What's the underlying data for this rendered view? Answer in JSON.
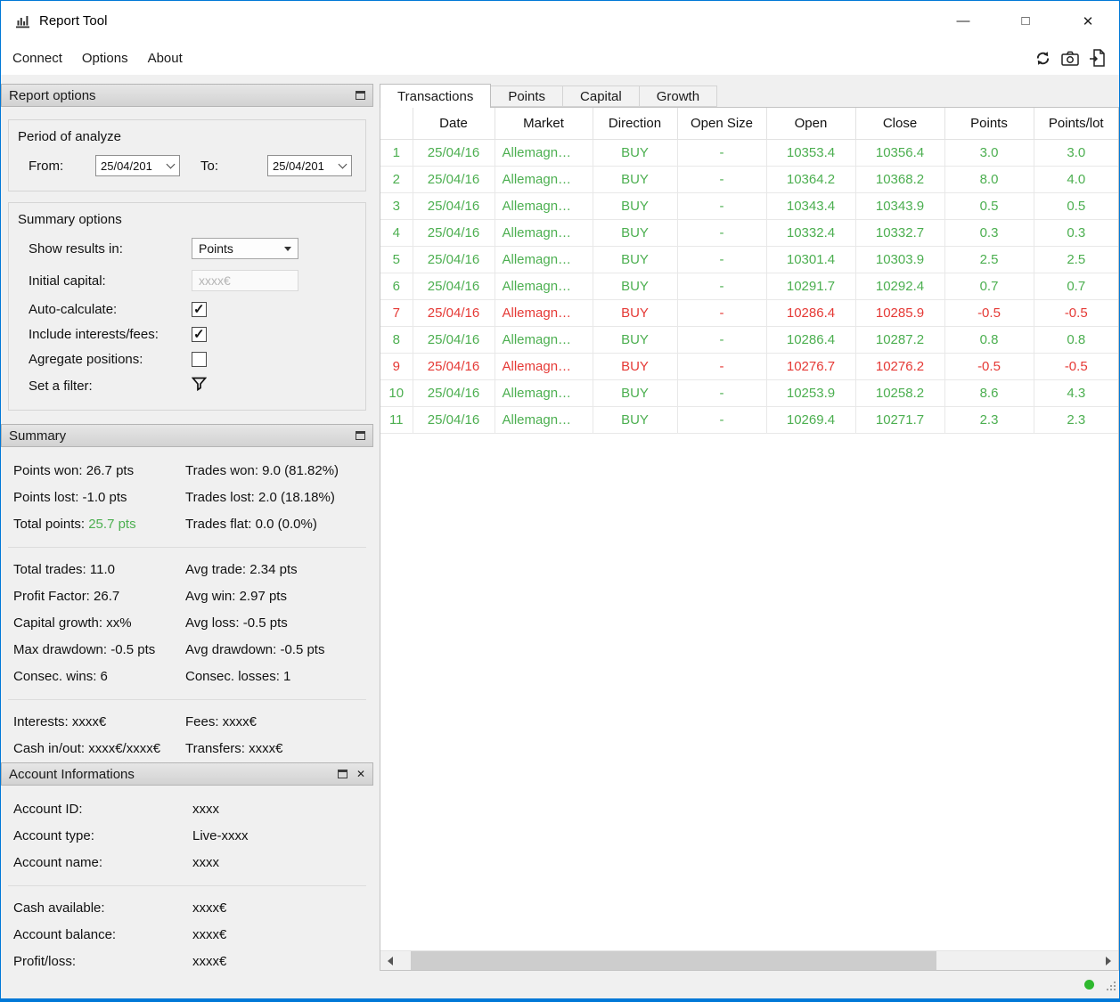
{
  "colors": {
    "green": "#4caf50",
    "red": "#e53935",
    "accent_border": "#0078d7",
    "status_dot": "#2eb82e"
  },
  "window": {
    "title": "Report Tool",
    "controls": {
      "minimize": "—",
      "maximize": "□",
      "close": "✕"
    }
  },
  "menu": {
    "items": [
      "Connect",
      "Options",
      "About"
    ]
  },
  "tabs": {
    "items": [
      "Transactions",
      "Points",
      "Capital",
      "Growth"
    ],
    "active": "Transactions"
  },
  "report_options": {
    "title": "Report options",
    "period": {
      "title": "Period of analyze",
      "from_label": "From:",
      "from_value": "25/04/201",
      "to_label": "To:",
      "to_value": "25/04/201"
    },
    "summary_options": {
      "title": "Summary options",
      "show_results_label": "Show results in:",
      "show_results_value": "Points",
      "initial_capital_label": "Initial capital:",
      "initial_capital_value": "xxxx€",
      "auto_calculate_label": "Auto-calculate:",
      "auto_calculate_checked": true,
      "include_fees_label": "Include interests/fees:",
      "include_fees_checked": true,
      "aggregate_label": "Agregate positions:",
      "aggregate_checked": false,
      "filter_label": "Set a filter:"
    }
  },
  "summary": {
    "title": "Summary",
    "blocks": [
      [
        {
          "left": "Points won: 26.7 pts",
          "right": "Trades won: 9.0 (81.82%)"
        },
        {
          "left": "Points lost: -1.0 pts",
          "right": "Trades lost: 2.0 (18.18%)"
        },
        {
          "left": "Total points: ",
          "left_highlight": "25.7 pts",
          "right": "Trades flat: 0.0 (0.0%)"
        }
      ],
      [
        {
          "left": "Total trades: 11.0",
          "right": "Avg trade: 2.34 pts"
        },
        {
          "left": "Profit Factor: 26.7",
          "right": "Avg win: 2.97 pts"
        },
        {
          "left": "Capital growth: xx%",
          "right": "Avg loss: -0.5 pts"
        },
        {
          "left": "Max drawdown: -0.5 pts",
          "right": "Avg drawdown: -0.5 pts"
        },
        {
          "left": "Consec. wins: 6",
          "right": "Consec. losses: 1"
        }
      ],
      [
        {
          "left": "Interests: xxxx€",
          "right": "Fees: xxxx€"
        },
        {
          "left": "Cash in/out: xxxx€/xxxx€",
          "right": "Transfers: xxxx€"
        }
      ]
    ]
  },
  "account": {
    "title": "Account Informations",
    "blocks": [
      [
        {
          "label": "Account ID:",
          "value": "xxxx"
        },
        {
          "label": "Account type:",
          "value": "Live-xxxx"
        },
        {
          "label": "Account name:",
          "value": "xxxx"
        }
      ],
      [
        {
          "label": "Cash available:",
          "value": "xxxx€"
        },
        {
          "label": "Account balance:",
          "value": "xxxx€"
        },
        {
          "label": "Profit/loss:",
          "value": "xxxx€"
        }
      ]
    ]
  },
  "table": {
    "columns": [
      "Date",
      "Market",
      "Direction",
      "Open Size",
      "Open",
      "Close",
      "Points",
      "Points/lot"
    ],
    "rows": [
      {
        "n": "1",
        "date": "25/04/16",
        "market": "Allemagn…",
        "direction": "BUY",
        "open_size": "-",
        "open": "10353.4",
        "close": "10356.4",
        "points": "3.0",
        "points_lot": "3.0",
        "result": "win"
      },
      {
        "n": "2",
        "date": "25/04/16",
        "market": "Allemagn…",
        "direction": "BUY",
        "open_size": "-",
        "open": "10364.2",
        "close": "10368.2",
        "points": "8.0",
        "points_lot": "4.0",
        "result": "win"
      },
      {
        "n": "3",
        "date": "25/04/16",
        "market": "Allemagn…",
        "direction": "BUY",
        "open_size": "-",
        "open": "10343.4",
        "close": "10343.9",
        "points": "0.5",
        "points_lot": "0.5",
        "result": "win"
      },
      {
        "n": "4",
        "date": "25/04/16",
        "market": "Allemagn…",
        "direction": "BUY",
        "open_size": "-",
        "open": "10332.4",
        "close": "10332.7",
        "points": "0.3",
        "points_lot": "0.3",
        "result": "win"
      },
      {
        "n": "5",
        "date": "25/04/16",
        "market": "Allemagn…",
        "direction": "BUY",
        "open_size": "-",
        "open": "10301.4",
        "close": "10303.9",
        "points": "2.5",
        "points_lot": "2.5",
        "result": "win"
      },
      {
        "n": "6",
        "date": "25/04/16",
        "market": "Allemagn…",
        "direction": "BUY",
        "open_size": "-",
        "open": "10291.7",
        "close": "10292.4",
        "points": "0.7",
        "points_lot": "0.7",
        "result": "win"
      },
      {
        "n": "7",
        "date": "25/04/16",
        "market": "Allemagn…",
        "direction": "BUY",
        "open_size": "-",
        "open": "10286.4",
        "close": "10285.9",
        "points": "-0.5",
        "points_lot": "-0.5",
        "result": "loss"
      },
      {
        "n": "8",
        "date": "25/04/16",
        "market": "Allemagn…",
        "direction": "BUY",
        "open_size": "-",
        "open": "10286.4",
        "close": "10287.2",
        "points": "0.8",
        "points_lot": "0.8",
        "result": "win"
      },
      {
        "n": "9",
        "date": "25/04/16",
        "market": "Allemagn…",
        "direction": "BUY",
        "open_size": "-",
        "open": "10276.7",
        "close": "10276.2",
        "points": "-0.5",
        "points_lot": "-0.5",
        "result": "loss"
      },
      {
        "n": "10",
        "date": "25/04/16",
        "market": "Allemagn…",
        "direction": "BUY",
        "open_size": "-",
        "open": "10253.9",
        "close": "10258.2",
        "points": "8.6",
        "points_lot": "4.3",
        "result": "win"
      },
      {
        "n": "11",
        "date": "25/04/16",
        "market": "Allemagn…",
        "direction": "BUY",
        "open_size": "-",
        "open": "10269.4",
        "close": "10271.7",
        "points": "2.3",
        "points_lot": "2.3",
        "result": "win"
      }
    ]
  }
}
